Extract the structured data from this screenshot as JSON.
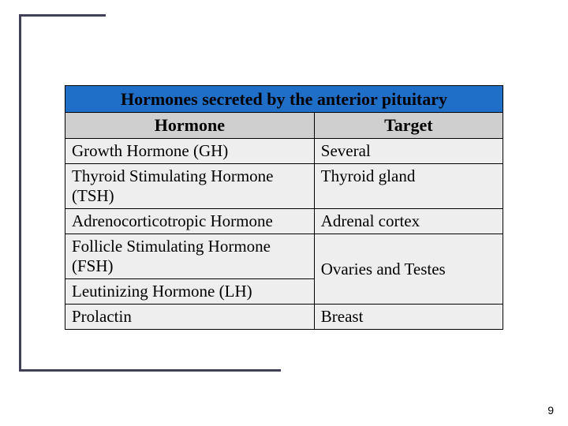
{
  "table": {
    "title": "Hormones secreted by the anterior pituitary",
    "headers": {
      "left": "Hormone",
      "right": "Target"
    },
    "rows": [
      {
        "hormone": "Growth Hormone (GH)",
        "target": "Several"
      },
      {
        "hormone": "Thyroid Stimulating Hormone (TSH)",
        "target": "Thyroid gland"
      },
      {
        "hormone": "Adrenocorticotropic Hormone",
        "target": "Adrenal cortex"
      }
    ],
    "merged": {
      "hormones": [
        "Follicle Stimulating Hormone (FSH)",
        "Leutinizing Hormone (LH)"
      ],
      "target": "Ovaries and Testes"
    },
    "last": {
      "hormone": "Prolactin",
      "target": "Breast"
    }
  },
  "colors": {
    "title_bg": "#1f6fc8",
    "header_bg": "#cfcfcf",
    "row_bg": "#eeeeee",
    "border": "#000000",
    "frame": "#404058"
  },
  "page_number": "9"
}
